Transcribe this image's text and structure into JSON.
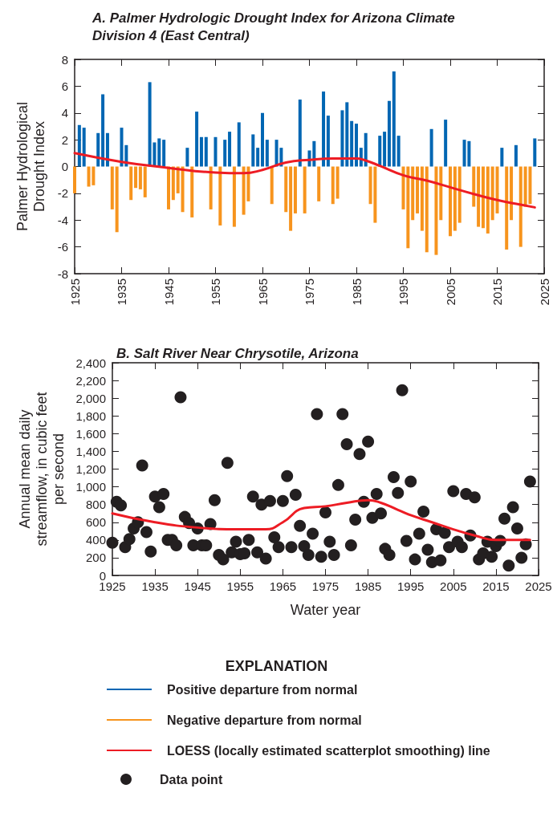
{
  "chart_data": [
    {
      "type": "bar",
      "title": "A. Palmer Hydrologic Drought Index for Arizona Climate Division 4 (East Central)",
      "ylabel": "Palmer Hydrological Drought Index",
      "legend_title": "EXPLANATION",
      "legend": "bottom",
      "x": [
        1925,
        1926,
        1927,
        1928,
        1929,
        1930,
        1931,
        1932,
        1933,
        1934,
        1935,
        1936,
        1937,
        1938,
        1939,
        1940,
        1941,
        1942,
        1943,
        1944,
        1945,
        1946,
        1947,
        1948,
        1949,
        1950,
        1951,
        1952,
        1953,
        1954,
        1955,
        1956,
        1957,
        1958,
        1959,
        1960,
        1961,
        1962,
        1963,
        1964,
        1965,
        1966,
        1967,
        1968,
        1969,
        1970,
        1971,
        1972,
        1973,
        1974,
        1975,
        1976,
        1977,
        1978,
        1979,
        1980,
        1981,
        1982,
        1983,
        1984,
        1985,
        1986,
        1987,
        1988,
        1989,
        1990,
        1991,
        1992,
        1993,
        1994,
        1995,
        1996,
        1997,
        1998,
        1999,
        2000,
        2001,
        2002,
        2003,
        2004,
        2005,
        2006,
        2007,
        2008,
        2009,
        2010,
        2011,
        2012,
        2013,
        2014,
        2015,
        2016,
        2017,
        2018,
        2019,
        2020,
        2021,
        2022,
        2023
      ],
      "series": [
        {
          "name": "Positive departure from normal",
          "color": "#0066b3",
          "values": [
            null,
            3.1,
            2.9,
            null,
            null,
            2.5,
            5.4,
            2.5,
            null,
            null,
            2.9,
            1.6,
            null,
            null,
            null,
            null,
            6.3,
            1.8,
            2.1,
            2.0,
            null,
            null,
            null,
            null,
            1.4,
            null,
            4.1,
            2.2,
            2.2,
            null,
            2.2,
            null,
            2.0,
            2.6,
            null,
            3.3,
            null,
            null,
            2.4,
            1.4,
            4.0,
            2.0,
            null,
            2.0,
            1.4,
            null,
            null,
            null,
            5.0,
            null,
            1.2,
            1.9,
            null,
            5.6,
            3.8,
            null,
            null,
            4.2,
            4.8,
            3.4,
            3.2,
            1.4,
            2.5,
            null,
            null,
            2.3,
            2.6,
            4.9,
            7.1,
            2.3,
            null,
            null,
            null,
            null,
            null,
            null,
            2.8,
            null,
            null,
            3.5,
            null,
            null,
            null,
            2.0,
            1.9,
            null,
            null,
            null,
            null,
            null,
            null,
            1.4,
            null,
            null,
            1.6,
            null,
            null,
            null,
            2.1
          ]
        },
        {
          "name": "Negative departure from normal",
          "color": "#f7941d",
          "values": [
            -2.0,
            null,
            null,
            -1.5,
            -1.4,
            null,
            null,
            null,
            -3.2,
            -4.9,
            null,
            null,
            -2.5,
            -1.6,
            -1.7,
            -2.3,
            null,
            null,
            null,
            null,
            -3.2,
            -2.5,
            -2.0,
            -3.4,
            null,
            -3.8,
            null,
            null,
            null,
            -3.2,
            null,
            -4.4,
            null,
            null,
            -4.5,
            null,
            -3.6,
            -2.6,
            null,
            null,
            null,
            null,
            -2.8,
            null,
            null,
            -3.4,
            -4.8,
            -3.5,
            null,
            -3.5,
            null,
            null,
            -2.6,
            null,
            null,
            -2.8,
            -2.4,
            null,
            null,
            null,
            null,
            null,
            null,
            -2.8,
            -4.2,
            null,
            null,
            null,
            null,
            null,
            -3.2,
            -6.1,
            -4.0,
            -3.5,
            -4.8,
            -6.4,
            null,
            -6.6,
            -4.0,
            null,
            -5.2,
            -4.8,
            -4.2,
            null,
            null,
            -3.0,
            -4.5,
            -4.6,
            -5.0,
            -4.0,
            -3.5,
            null,
            -6.2,
            -4.0,
            null,
            -6.0,
            -3.0,
            -2.8,
            null
          ]
        },
        {
          "name": "LOESS (locally estimated scatterplot smoothing) line",
          "type": "line",
          "color": "#ed1c24",
          "x": [
            1925,
            1935,
            1945,
            1955,
            1961,
            1965,
            1970,
            1975,
            1980,
            1985,
            1987,
            1990,
            1995,
            2000,
            2005,
            2010,
            2015,
            2020,
            2023
          ],
          "values": [
            1.0,
            0.35,
            -0.1,
            -0.45,
            -0.5,
            -0.25,
            0.3,
            0.5,
            0.6,
            0.6,
            0.45,
            0.05,
            -0.65,
            -1.05,
            -1.55,
            -2.05,
            -2.5,
            -2.85,
            -3.05
          ]
        }
      ],
      "xlim": [
        1925,
        2025
      ],
      "xticks": [
        1925,
        1935,
        1945,
        1955,
        1965,
        1975,
        1985,
        1995,
        2005,
        2015,
        2025
      ],
      "ylim": [
        -8,
        8
      ],
      "yticks": [
        -8,
        -6,
        -4,
        -2,
        0,
        2,
        4,
        6,
        8
      ]
    },
    {
      "type": "scatter",
      "title": "B. Salt River Near Chrysotile, Arizona",
      "xlabel": "Water year",
      "ylabel": "Annual mean daily streamflow, in cubic feet per second",
      "legend": "bottom",
      "x": [
        1925,
        1926,
        1927,
        1928,
        1929,
        1930,
        1931,
        1932,
        1933,
        1934,
        1935,
        1936,
        1937,
        1938,
        1939,
        1940,
        1941,
        1942,
        1943,
        1944,
        1945,
        1946,
        1947,
        1948,
        1949,
        1950,
        1951,
        1952,
        1953,
        1954,
        1955,
        1956,
        1957,
        1958,
        1959,
        1960,
        1961,
        1962,
        1963,
        1964,
        1965,
        1966,
        1967,
        1968,
        1969,
        1970,
        1971,
        1972,
        1973,
        1974,
        1975,
        1976,
        1977,
        1978,
        1979,
        1980,
        1981,
        1982,
        1983,
        1984,
        1985,
        1986,
        1987,
        1988,
        1989,
        1990,
        1991,
        1992,
        1993,
        1994,
        1995,
        1996,
        1997,
        1998,
        1999,
        2000,
        2001,
        2002,
        2003,
        2004,
        2005,
        2006,
        2007,
        2008,
        2009,
        2010,
        2011,
        2012,
        2013,
        2014,
        2015,
        2016,
        2017,
        2018,
        2019,
        2020,
        2021,
        2022,
        2023
      ],
      "series": [
        {
          "name": "Data point",
          "color": "#231f20",
          "marker": "circle",
          "values": [
            370,
            830,
            790,
            320,
            410,
            530,
            600,
            1240,
            490,
            270,
            890,
            770,
            920,
            400,
            400,
            340,
            2010,
            660,
            590,
            340,
            530,
            340,
            340,
            580,
            850,
            230,
            180,
            1270,
            260,
            380,
            240,
            250,
            400,
            890,
            260,
            800,
            190,
            840,
            430,
            320,
            840,
            1120,
            320,
            910,
            560,
            330,
            230,
            470,
            1820,
            210,
            710,
            380,
            230,
            1020,
            1820,
            1480,
            340,
            630,
            1370,
            830,
            1510,
            650,
            920,
            700,
            300,
            230,
            1110,
            930,
            2090,
            390,
            1060,
            180,
            470,
            720,
            290,
            150,
            520,
            170,
            480,
            320,
            950,
            380,
            320,
            920,
            450,
            880,
            180,
            250,
            380,
            210,
            330,
            390,
            640,
            110,
            770,
            530,
            200,
            350,
            1060
          ]
        },
        {
          "type": "line",
          "color": "#ed1c24",
          "marker": "none",
          "x": [
            1925,
            1935,
            1945,
            1955,
            1961,
            1965,
            1970,
            1975,
            1980,
            1985,
            1988,
            1992,
            1995,
            2000,
            2005,
            2010,
            2015,
            2023
          ],
          "values": [
            700,
            600,
            540,
            520,
            520,
            600,
            760,
            780,
            820,
            850,
            820,
            740,
            680,
            600,
            520,
            450,
            400,
            400
          ]
        }
      ],
      "xlim": [
        1925,
        2025
      ],
      "xticks": [
        1925,
        1935,
        1945,
        1955,
        1965,
        1975,
        1985,
        1995,
        2005,
        2015,
        2025
      ],
      "ylim": [
        0,
        2400
      ],
      "yticks": [
        0,
        200,
        400,
        600,
        800,
        {
          "value": 1000,
          "label": "1,000"
        },
        {
          "value": 1200,
          "label": "1,200"
        },
        {
          "value": 1400,
          "label": "1,400"
        },
        {
          "value": 1600,
          "label": "1,600"
        },
        {
          "value": 1800,
          "label": "1,800"
        },
        {
          "value": 2000,
          "label": "2,000"
        },
        {
          "value": 2200,
          "label": "2,200"
        },
        {
          "value": 2400,
          "label": "2,400"
        }
      ]
    }
  ]
}
